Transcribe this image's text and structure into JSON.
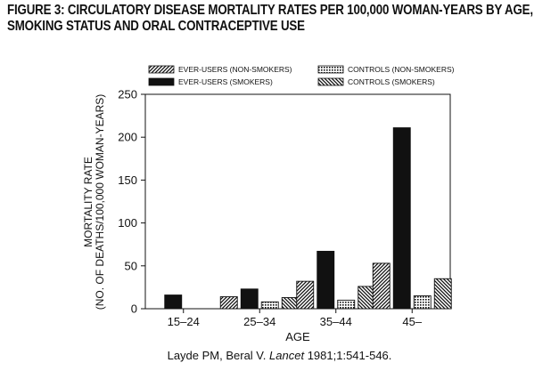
{
  "title": "FIGURE 3: CIRCULATORY DISEASE MORTALITY RATES PER 100,000 WOMAN-YEARS BY AGE, SMOKING STATUS AND ORAL CONTRACEPTIVE USE",
  "citation": {
    "authors": "Layde PM, Beral V.",
    "journal": "Lancet",
    "ref": "1981;1:541-546."
  },
  "chart_data": {
    "type": "bar",
    "categories": [
      "15–24",
      "25–34",
      "35–44",
      "45–"
    ],
    "series": [
      {
        "name": "EVER-USERS (NON-SMOKERS)",
        "pattern": "diagonal-forward",
        "values": [
          null,
          14,
          32,
          53
        ]
      },
      {
        "name": "EVER-USERS (SMOKERS)",
        "pattern": "solid",
        "values": [
          16,
          23,
          67,
          211
        ]
      },
      {
        "name": "CONTROLS (NON-SMOKERS)",
        "pattern": "dotted",
        "values": [
          null,
          8,
          10,
          15
        ]
      },
      {
        "name": "CONTROLS (SMOKERS)",
        "pattern": "diagonal-back",
        "values": [
          null,
          13,
          26,
          35
        ]
      }
    ],
    "xlabel": "AGE",
    "ylabel_lines": [
      "MORTALITY RATE",
      "(NO. OF DEATHS/100,000 WOMAN-YEARS)"
    ],
    "ylim": [
      0,
      250
    ],
    "yticks": [
      0,
      50,
      100,
      150,
      200,
      250
    ],
    "grid": false,
    "legend_position": "top"
  }
}
